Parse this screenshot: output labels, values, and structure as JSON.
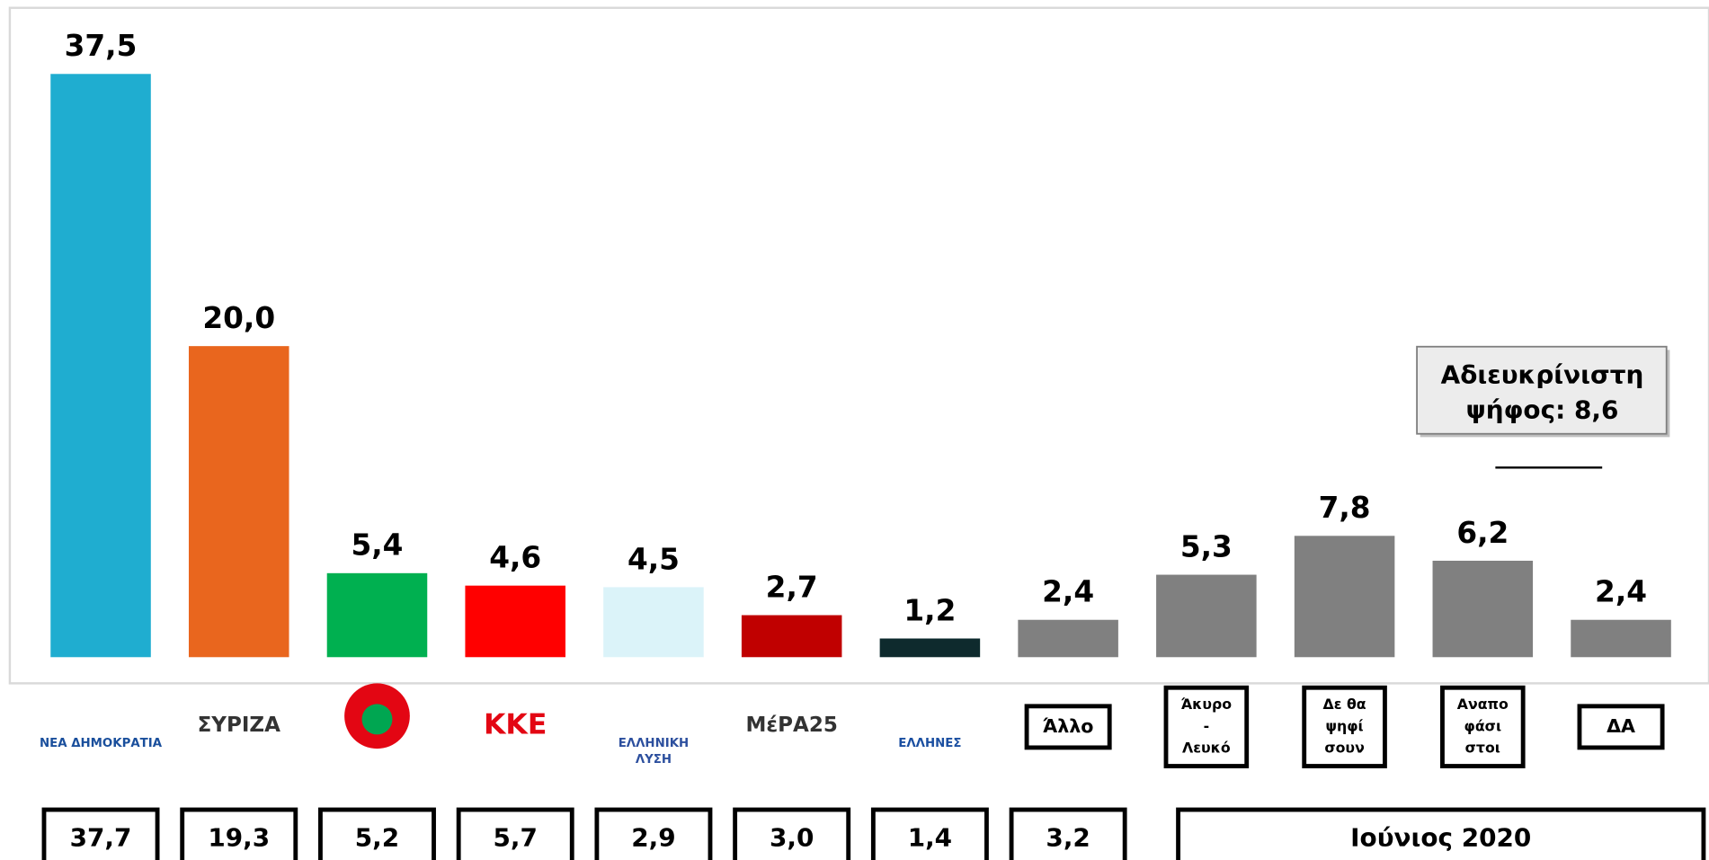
{
  "chart_data": {
    "type": "bar",
    "categories": [
      [
        "ΝΕΑ ΔΗΜΟΚΡΑΤΙΑ"
      ],
      [
        "ΣΥΡΙΖΑ"
      ],
      null,
      [
        "ΚΚΕ"
      ],
      [
        "ΕΛΛΗΝΙΚΗ",
        "ΛΥΣΗ"
      ],
      [
        "ΜέΡΑ25"
      ],
      [
        "ΕΛΛΗΝΕΣ"
      ],
      [
        "Άλλο"
      ],
      [
        "Άκυρο",
        "-",
        "Λευκό"
      ],
      [
        "Δε θα",
        "ψηφί",
        "σουν"
      ],
      [
        "Αναπο",
        "φάσι",
        "στοι"
      ],
      [
        "ΔΑ"
      ]
    ],
    "values": [
      37.5,
      20.0,
      5.4,
      4.6,
      4.5,
      2.7,
      1.2,
      2.4,
      5.3,
      7.8,
      6.2,
      2.4
    ],
    "value_labels": [
      "37,5",
      "20,0",
      "5,4",
      "4,6",
      "4,5",
      "2,7",
      "1,2",
      "2,4",
      "5,3",
      "7,8",
      "6,2",
      "2,4"
    ],
    "colors": [
      "#1fadd0",
      "#e9661e",
      "#00b050",
      "#ff0000",
      "#dbf3f9",
      "#c00000",
      "#0e2a2d",
      "#808080",
      "#808080",
      "#808080",
      "#808080",
      "#808080"
    ],
    "ylim": [
      0,
      40
    ],
    "previous_values": [
      37.7,
      19.3,
      5.2,
      5.7,
      2.9,
      3.0,
      1.4,
      3.2
    ],
    "previous_value_labels": [
      "37,7",
      "19,3",
      "5,2",
      "5,7",
      "2,9",
      "3,0",
      "1,4",
      "3,2"
    ],
    "previous_label": "Ιούνιος 2020",
    "annotation": [
      "Αδιευκρίνιστη",
      "ψήφος: 8,6"
    ]
  }
}
